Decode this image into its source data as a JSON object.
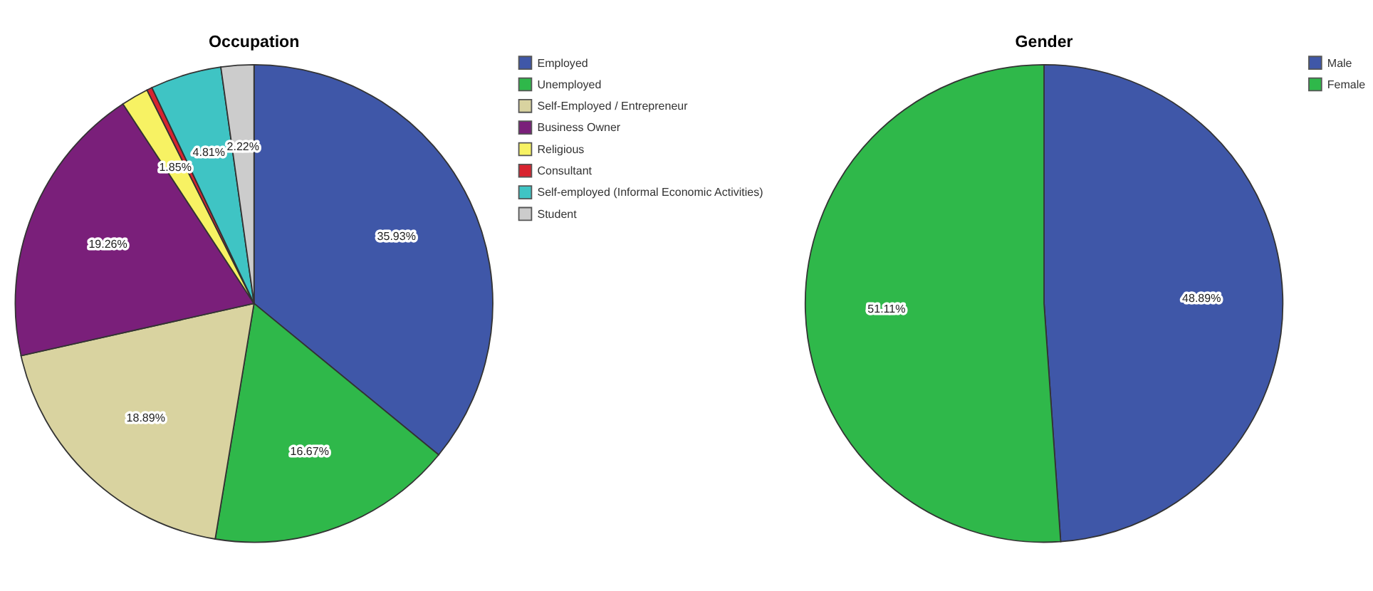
{
  "chart_data": [
    {
      "type": "pie",
      "title": "Occupation",
      "categories": [
        "Employed",
        "Unemployed",
        "Self-Employed / Entrepreneur",
        "Business Owner",
        "Religious",
        "Consultant",
        "Self-employed (Informal Economic Activities)",
        "Student"
      ],
      "values": [
        35.93,
        16.67,
        18.89,
        19.26,
        1.85,
        0.37,
        4.81,
        2.22
      ],
      "colors": [
        "#3f57a8",
        "#2fb84a",
        "#d9d3a0",
        "#7a1f7a",
        "#f7f263",
        "#d8232f",
        "#3fc4c4",
        "#cccccc"
      ],
      "value_labels": [
        "35.93%",
        "16.67%",
        "18.89%",
        "19.26%",
        "1.85%",
        null,
        "4.81%",
        "2.22%"
      ],
      "legend": "top right"
    },
    {
      "type": "pie",
      "title": "Gender",
      "categories": [
        "Male",
        "Female"
      ],
      "values": [
        48.89,
        51.11
      ],
      "colors": [
        "#3f57a8",
        "#2fb84a"
      ],
      "value_labels": [
        "48.89%",
        "51.11%"
      ],
      "legend": "top right"
    }
  ]
}
